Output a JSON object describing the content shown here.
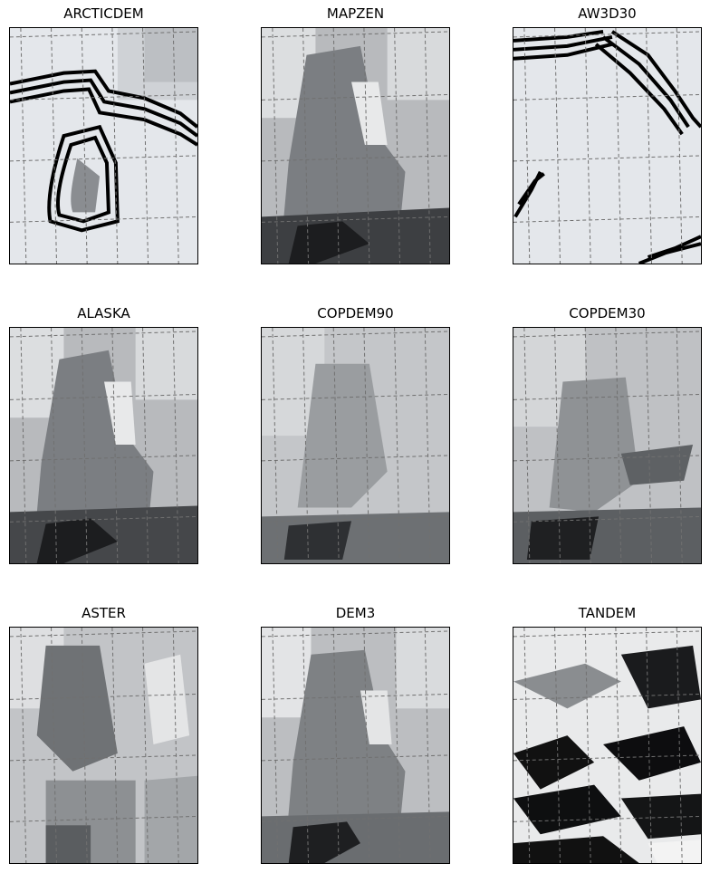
{
  "figure": {
    "panels": [
      {
        "title": "ARCTICDEM",
        "rendering": "nodata-striped"
      },
      {
        "title": "MAPZEN",
        "rendering": "hillshade"
      },
      {
        "title": "AW3D30",
        "rendering": "nodata-striped"
      },
      {
        "title": "ALASKA",
        "rendering": "hillshade"
      },
      {
        "title": "COPDEM90",
        "rendering": "hillshade-smooth"
      },
      {
        "title": "COPDEM30",
        "rendering": "hillshade"
      },
      {
        "title": "ASTER",
        "rendering": "hillshade-noisy"
      },
      {
        "title": "DEM3",
        "rendering": "hillshade-smooth"
      },
      {
        "title": "TANDEM",
        "rendering": "hillshade-high-contrast"
      }
    ],
    "colormap": "grayscale",
    "graticule": "dashed-grey"
  }
}
